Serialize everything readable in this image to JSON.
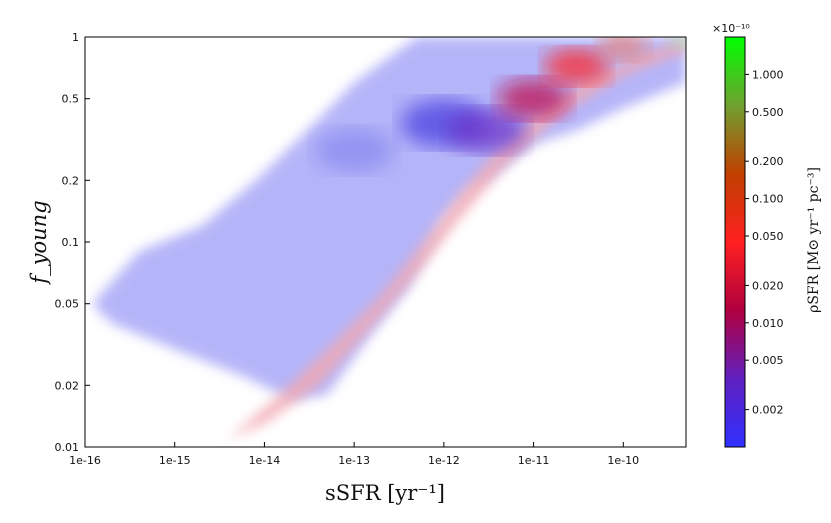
{
  "chart_data": {
    "type": "heatmap",
    "title": "",
    "xlabel": "sSFR [yr⁻¹]",
    "ylabel": "f_young",
    "xscale": "log",
    "yscale": "log",
    "xlim": [
      1e-16,
      5e-10
    ],
    "ylim": [
      0.01,
      1
    ],
    "x_ticks": [
      "1e-16",
      "1e-15",
      "1e-14",
      "1e-13",
      "1e-12",
      "1e-11",
      "1e-10"
    ],
    "y_ticks": [
      "0.01",
      "0.02",
      "0.05",
      "0.1",
      "0.2",
      "0.5",
      "1"
    ],
    "grid": false,
    "colorbar": {
      "label": "ρSFR [M⊙ yr⁻¹ pc⁻³]",
      "scale": "log",
      "multiplier": "×10⁻¹⁰",
      "range": [
        0.001,
        2.0
      ],
      "ticks": [
        "1.000",
        "0.500",
        "0.200",
        "0.100",
        "0.050",
        "0.020",
        "0.010",
        "0.005",
        "0.002"
      ],
      "colors": [
        "#3030ff",
        "#6020c0",
        "#b00040",
        "#ff2020",
        "#c04000",
        "#70a030",
        "#00ff00"
      ]
    },
    "features": {
      "background_density_color": "#a8a8f8",
      "low_fyoung_edge_color": "#f2a8b0",
      "ridge": [
        {
          "x": 1e-13,
          "y": 0.28
        },
        {
          "x": 1e-12,
          "y": 0.38
        },
        {
          "x": 3e-12,
          "y": 0.35
        },
        {
          "x": 1e-11,
          "y": 0.5
        },
        {
          "x": 3e-11,
          "y": 0.72
        },
        {
          "x": 1e-10,
          "y": 0.9
        },
        {
          "x": 5e-10,
          "y": 0.98
        }
      ]
    }
  }
}
